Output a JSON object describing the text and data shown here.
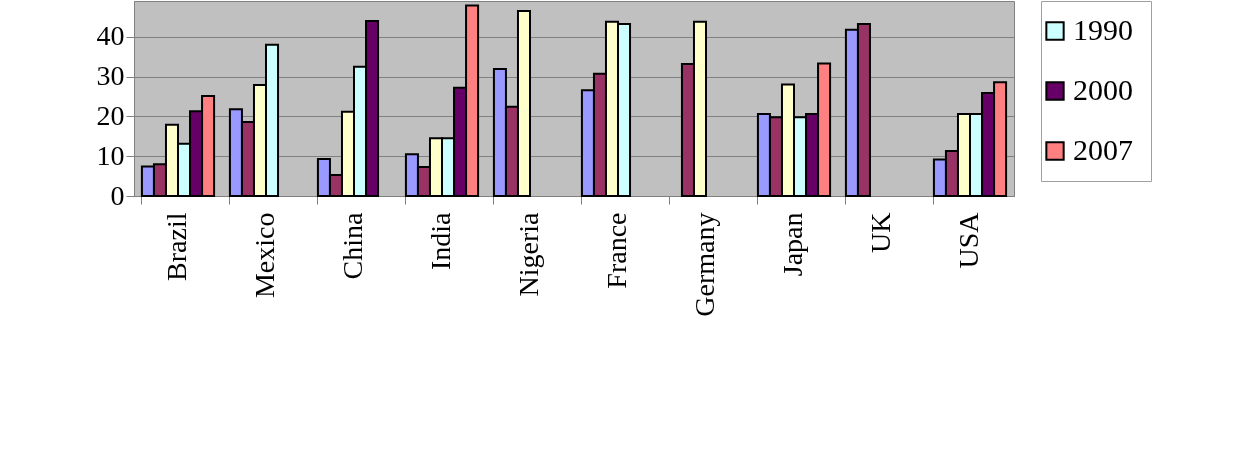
{
  "chart_data": {
    "type": "bar",
    "categories": [
      "Brazil",
      "Mexico",
      "China",
      "India",
      "Nigeria",
      "France",
      "Germany",
      "Japan",
      "UK",
      "USA"
    ],
    "series": [
      {
        "color": "#9999ff",
        "values": [
          7.4,
          21.8,
          9.3,
          10.5,
          31.9,
          26.6,
          null,
          20.6,
          41.8,
          9.2
        ]
      },
      {
        "color": "#993366",
        "values": [
          8.0,
          18.6,
          5.3,
          7.3,
          22.4,
          30.7,
          33.2,
          19.8,
          43.2,
          11.3
        ]
      },
      {
        "color": "#ffffcc",
        "values": [
          17.9,
          27.9,
          21.2,
          14.5,
          46.5,
          43.8,
          43.8,
          28.0,
          null,
          20.6
        ]
      },
      {
        "name": "1990",
        "color": "#ccffff",
        "values": [
          13.1,
          38.0,
          32.5,
          14.5,
          null,
          43.2,
          null,
          19.8,
          null,
          20.6
        ]
      },
      {
        "name": "2000",
        "color": "#660066",
        "values": [
          21.3,
          null,
          44.0,
          27.2,
          null,
          null,
          null,
          20.6,
          null,
          25.9
        ]
      },
      {
        "name": "2007",
        "color": "#ff8080",
        "values": [
          25.1,
          null,
          null,
          47.9,
          null,
          null,
          null,
          33.3,
          null,
          28.6
        ]
      }
    ],
    "ylim": [
      0,
      49
    ],
    "yticks": [
      0,
      10,
      20,
      30,
      40
    ],
    "grid": "y",
    "legend": "right"
  }
}
